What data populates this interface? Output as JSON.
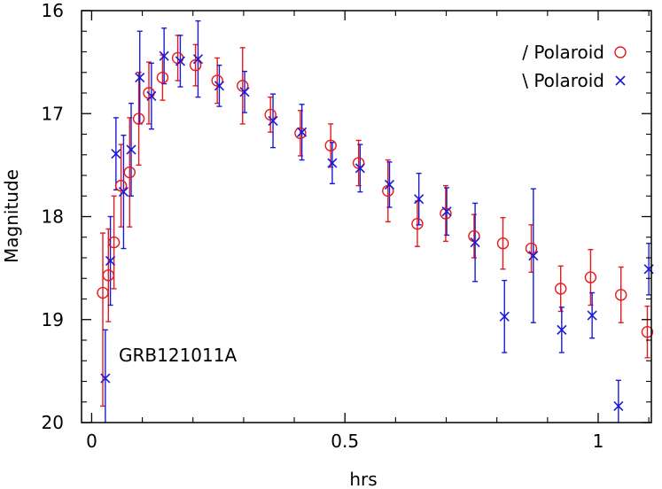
{
  "chart_data": {
    "type": "scatter",
    "xlabel": "hrs",
    "ylabel": "Magnitude",
    "annotation": "GRB121011A",
    "xlim": [
      -0.02,
      1.105
    ],
    "ylim": [
      20,
      16
    ],
    "y_inverted": true,
    "xticks": [
      0,
      0.5,
      1
    ],
    "xtick_labels": [
      "0",
      "0.5",
      "1"
    ],
    "yticks": [
      16,
      17,
      18,
      19,
      20
    ],
    "ytick_labels": [
      "16",
      "17",
      "18",
      "19",
      "20"
    ],
    "grid": false,
    "legend_position": "top-right",
    "series": [
      {
        "name": "/ Polaroid",
        "marker": "circle",
        "color": "#e41a1c",
        "points": [
          {
            "x": 0.022,
            "y": 18.74,
            "err_lo": 0.58,
            "err_hi": 1.1
          },
          {
            "x": 0.033,
            "y": 18.57,
            "err_lo": 0.45,
            "err_hi": 0.45
          },
          {
            "x": 0.044,
            "y": 18.25,
            "err_lo": 0.45,
            "err_hi": 0.45
          },
          {
            "x": 0.058,
            "y": 17.7,
            "err_lo": 0.4,
            "err_hi": 0.4
          },
          {
            "x": 0.075,
            "y": 17.57,
            "err_lo": 0.53,
            "err_hi": 0.53
          },
          {
            "x": 0.093,
            "y": 17.05,
            "err_lo": 0.45,
            "err_hi": 0.45
          },
          {
            "x": 0.113,
            "y": 16.8,
            "err_lo": 0.3,
            "err_hi": 0.3
          },
          {
            "x": 0.14,
            "y": 16.65,
            "err_lo": 0.22,
            "err_hi": 0.22
          },
          {
            "x": 0.17,
            "y": 16.46,
            "err_lo": 0.22,
            "err_hi": 0.22
          },
          {
            "x": 0.205,
            "y": 16.53,
            "err_lo": 0.2,
            "err_hi": 0.2
          },
          {
            "x": 0.248,
            "y": 16.68,
            "err_lo": 0.22,
            "err_hi": 0.22
          },
          {
            "x": 0.298,
            "y": 16.73,
            "err_lo": 0.37,
            "err_hi": 0.37
          },
          {
            "x": 0.353,
            "y": 17.01,
            "err_lo": 0.17,
            "err_hi": 0.17
          },
          {
            "x": 0.412,
            "y": 17.19,
            "err_lo": 0.22,
            "err_hi": 0.22
          },
          {
            "x": 0.472,
            "y": 17.31,
            "err_lo": 0.21,
            "err_hi": 0.21
          },
          {
            "x": 0.527,
            "y": 17.48,
            "err_lo": 0.22,
            "err_hi": 0.22
          },
          {
            "x": 0.585,
            "y": 17.75,
            "err_lo": 0.3,
            "err_hi": 0.3
          },
          {
            "x": 0.643,
            "y": 18.07,
            "err_lo": 0.22,
            "err_hi": 0.22
          },
          {
            "x": 0.699,
            "y": 17.97,
            "err_lo": 0.27,
            "err_hi": 0.27
          },
          {
            "x": 0.755,
            "y": 18.19,
            "err_lo": 0.21,
            "err_hi": 0.21
          },
          {
            "x": 0.812,
            "y": 18.26,
            "err_lo": 0.25,
            "err_hi": 0.25
          },
          {
            "x": 0.868,
            "y": 18.31,
            "err_lo": 0.23,
            "err_hi": 0.23
          },
          {
            "x": 0.926,
            "y": 18.7,
            "err_lo": 0.22,
            "err_hi": 0.22
          },
          {
            "x": 0.985,
            "y": 18.59,
            "err_lo": 0.27,
            "err_hi": 0.27
          },
          {
            "x": 1.045,
            "y": 18.76,
            "err_lo": 0.27,
            "err_hi": 0.27
          },
          {
            "x": 1.097,
            "y": 19.12,
            "err_lo": 0.25,
            "err_hi": 0.25
          }
        ]
      },
      {
        "name": "\\ Polaroid",
        "marker": "cross",
        "color": "#1a1ad6",
        "points": [
          {
            "x": 0.027,
            "y": 19.57,
            "err_lo": 0.47,
            "err_hi": 0.47
          },
          {
            "x": 0.037,
            "y": 18.43,
            "err_lo": 0.43,
            "err_hi": 0.43
          },
          {
            "x": 0.048,
            "y": 17.39,
            "err_lo": 0.35,
            "err_hi": 0.35
          },
          {
            "x": 0.063,
            "y": 17.76,
            "err_lo": 0.55,
            "err_hi": 0.55
          },
          {
            "x": 0.078,
            "y": 17.35,
            "err_lo": 0.45,
            "err_hi": 0.45
          },
          {
            "x": 0.095,
            "y": 16.65,
            "err_lo": 0.45,
            "err_hi": 0.45
          },
          {
            "x": 0.118,
            "y": 16.83,
            "err_lo": 0.32,
            "err_hi": 0.32
          },
          {
            "x": 0.143,
            "y": 16.44,
            "err_lo": 0.27,
            "err_hi": 0.27
          },
          {
            "x": 0.175,
            "y": 16.49,
            "err_lo": 0.25,
            "err_hi": 0.25
          },
          {
            "x": 0.21,
            "y": 16.47,
            "err_lo": 0.37,
            "err_hi": 0.37
          },
          {
            "x": 0.252,
            "y": 16.73,
            "err_lo": 0.2,
            "err_hi": 0.2
          },
          {
            "x": 0.302,
            "y": 16.79,
            "err_lo": 0.2,
            "err_hi": 0.2
          },
          {
            "x": 0.358,
            "y": 17.07,
            "err_lo": 0.26,
            "err_hi": 0.26
          },
          {
            "x": 0.415,
            "y": 17.18,
            "err_lo": 0.27,
            "err_hi": 0.27
          },
          {
            "x": 0.475,
            "y": 17.48,
            "err_lo": 0.2,
            "err_hi": 0.2
          },
          {
            "x": 0.53,
            "y": 17.53,
            "err_lo": 0.23,
            "err_hi": 0.23
          },
          {
            "x": 0.588,
            "y": 17.69,
            "err_lo": 0.22,
            "err_hi": 0.22
          },
          {
            "x": 0.646,
            "y": 17.83,
            "err_lo": 0.25,
            "err_hi": 0.25
          },
          {
            "x": 0.701,
            "y": 17.95,
            "err_lo": 0.23,
            "err_hi": 0.23
          },
          {
            "x": 0.757,
            "y": 18.25,
            "err_lo": 0.38,
            "err_hi": 0.38
          },
          {
            "x": 0.815,
            "y": 18.97,
            "err_lo": 0.35,
            "err_hi": 0.35
          },
          {
            "x": 0.872,
            "y": 18.38,
            "err_lo": 0.65,
            "err_hi": 0.65
          },
          {
            "x": 0.928,
            "y": 19.1,
            "err_lo": 0.22,
            "err_hi": 0.22
          },
          {
            "x": 0.988,
            "y": 18.96,
            "err_lo": 0.22,
            "err_hi": 0.22
          },
          {
            "x": 1.04,
            "y": 19.84,
            "err_lo": 0.25,
            "err_hi": 0.25
          },
          {
            "x": 1.1,
            "y": 18.51,
            "err_lo": 0.25,
            "err_hi": 0.25
          }
        ]
      }
    ]
  }
}
